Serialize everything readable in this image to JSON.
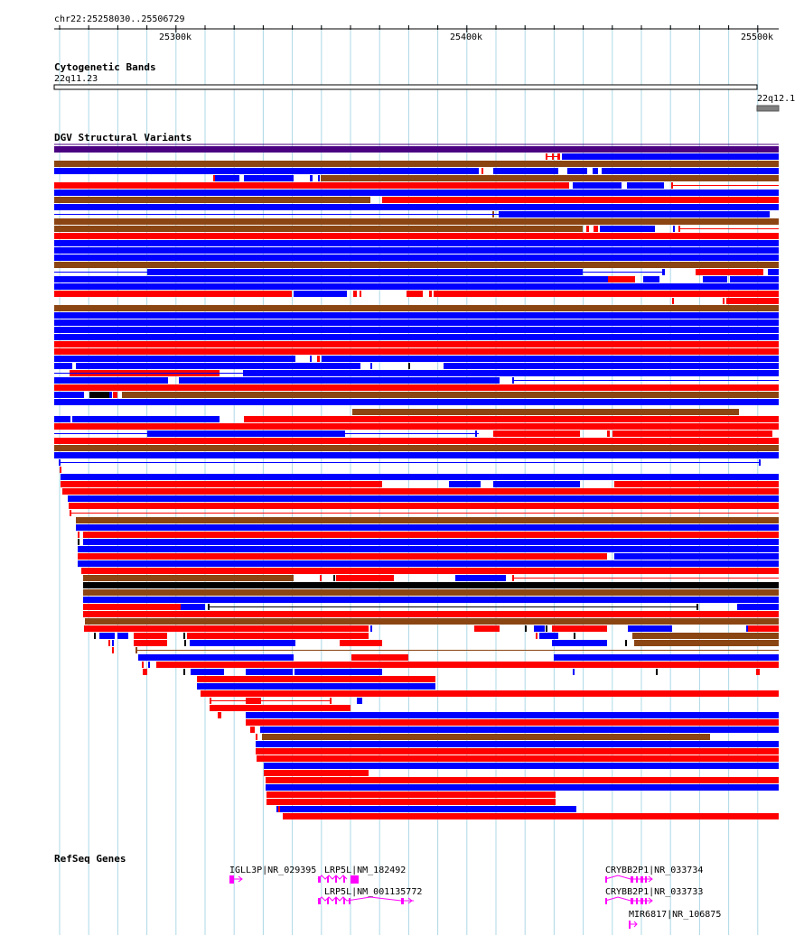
{
  "ruler": {
    "location": "chr22:25258030..25506729",
    "ticks": [
      "25300k",
      "25400k",
      "25500k"
    ]
  },
  "tracks": {
    "cytoband": {
      "title": "Cytogenetic Bands",
      "band_label": "22q11.23",
      "next_band_label": "22q12.1"
    },
    "dgv": {
      "title": "DGV Structural Variants"
    },
    "refseq": {
      "title": "RefSeq Genes",
      "genes": [
        {
          "label": "IGLL3P|NR_029395"
        },
        {
          "label": "LRP5L|NM_182492"
        },
        {
          "label": "LRP5L|NM_001135772"
        },
        {
          "label": "CRYBB2P1|NR_033734"
        },
        {
          "label": "CRYBB2P1|NR_033733"
        },
        {
          "label": "MIR6817|NR_106875"
        }
      ]
    }
  },
  "colors": {
    "gain": "#0000ff",
    "loss": "#ff0000",
    "gain_loss": "#8b4513",
    "inversion": "#4b0082",
    "complex": "#000000",
    "gene": "#ff00ff",
    "grid": "#add8e6"
  }
}
